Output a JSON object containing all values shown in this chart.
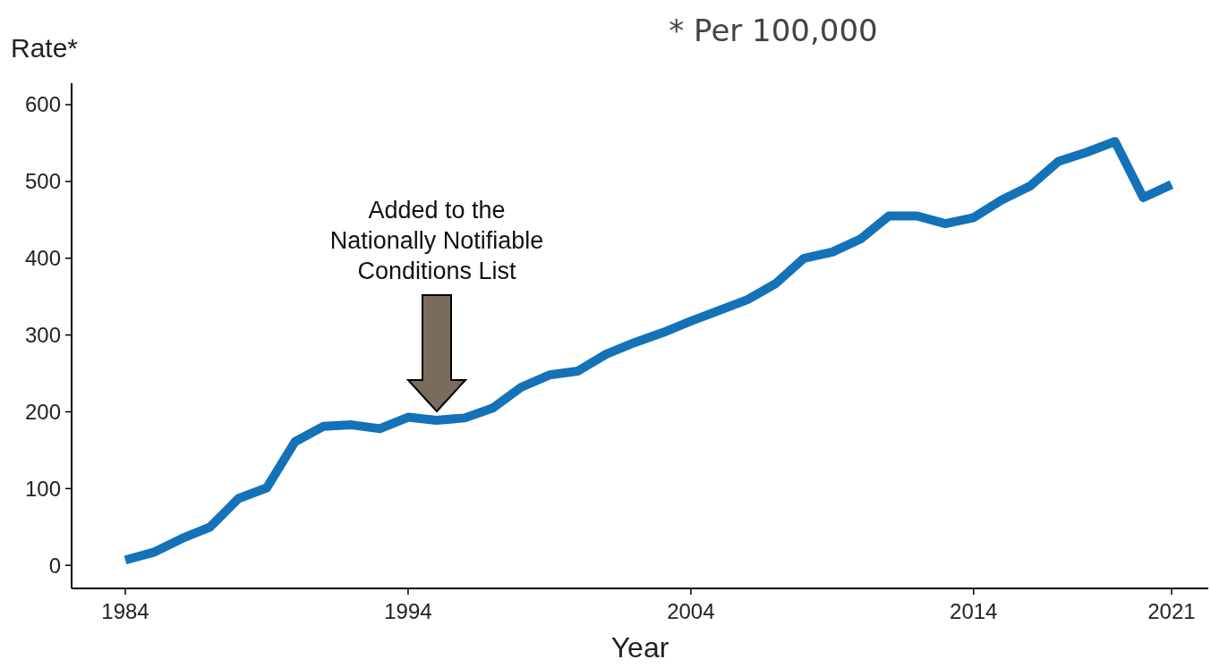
{
  "chart_data": {
    "type": "line",
    "xlabel": "Year",
    "ylabel": "Rate*",
    "x": [
      1984,
      1985,
      1986,
      1987,
      1988,
      1989,
      1990,
      1991,
      1992,
      1993,
      1994,
      1995,
      1996,
      1997,
      1998,
      1999,
      2000,
      2001,
      2002,
      2003,
      2004,
      2005,
      2006,
      2007,
      2008,
      2009,
      2010,
      2011,
      2012,
      2013,
      2014,
      2015,
      2016,
      2017,
      2018,
      2019,
      2020,
      2021
    ],
    "series": [
      {
        "color": "#1372b8",
        "values": [
          7,
          17,
          35,
          50,
          87,
          101,
          161,
          181,
          183,
          178,
          193,
          189,
          192,
          205,
          232,
          248,
          253,
          275,
          290,
          303,
          318,
          332,
          346,
          367,
          400,
          408,
          425,
          455,
          455,
          445,
          453,
          476,
          494,
          526,
          538,
          552,
          479,
          496
        ]
      }
    ],
    "xlim": [
      1982.1,
      2022.3
    ],
    "xticks": [
      1984,
      1994,
      2004,
      2014,
      2021
    ],
    "ylim": [
      -30,
      628
    ],
    "yticks": [
      0,
      100,
      200,
      300,
      400,
      500,
      600
    ],
    "grid": false,
    "marker": "none",
    "line_style": "solid",
    "annotations": [
      "Added to the\nNationally Notifiable\nConditions List",
      "* Per 100,000"
    ]
  }
}
